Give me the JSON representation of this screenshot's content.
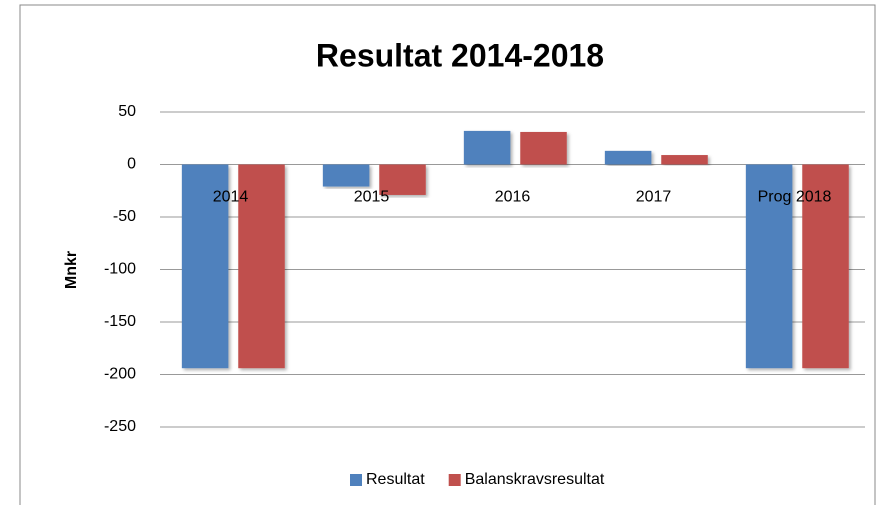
{
  "chart_data": {
    "type": "bar",
    "title": "Resultat 2014-2018",
    "y_label": "Mnkr",
    "categories": [
      "2014",
      "2015",
      "2016",
      "2017",
      "Prog 2018"
    ],
    "series": [
      {
        "name": "Resultat",
        "color": "#4f81bd",
        "values": [
          -194,
          -21,
          32,
          13,
          -194
        ]
      },
      {
        "name": "Balanskravsresultat",
        "color": "#c0504d",
        "values": [
          -194,
          -29,
          31,
          9,
          -194
        ]
      }
    ],
    "ylim": [
      -250,
      50
    ],
    "yticks": [
      -250,
      -200,
      -150,
      -100,
      -50,
      0,
      50
    ],
    "grid": true,
    "legend": "bottom"
  }
}
